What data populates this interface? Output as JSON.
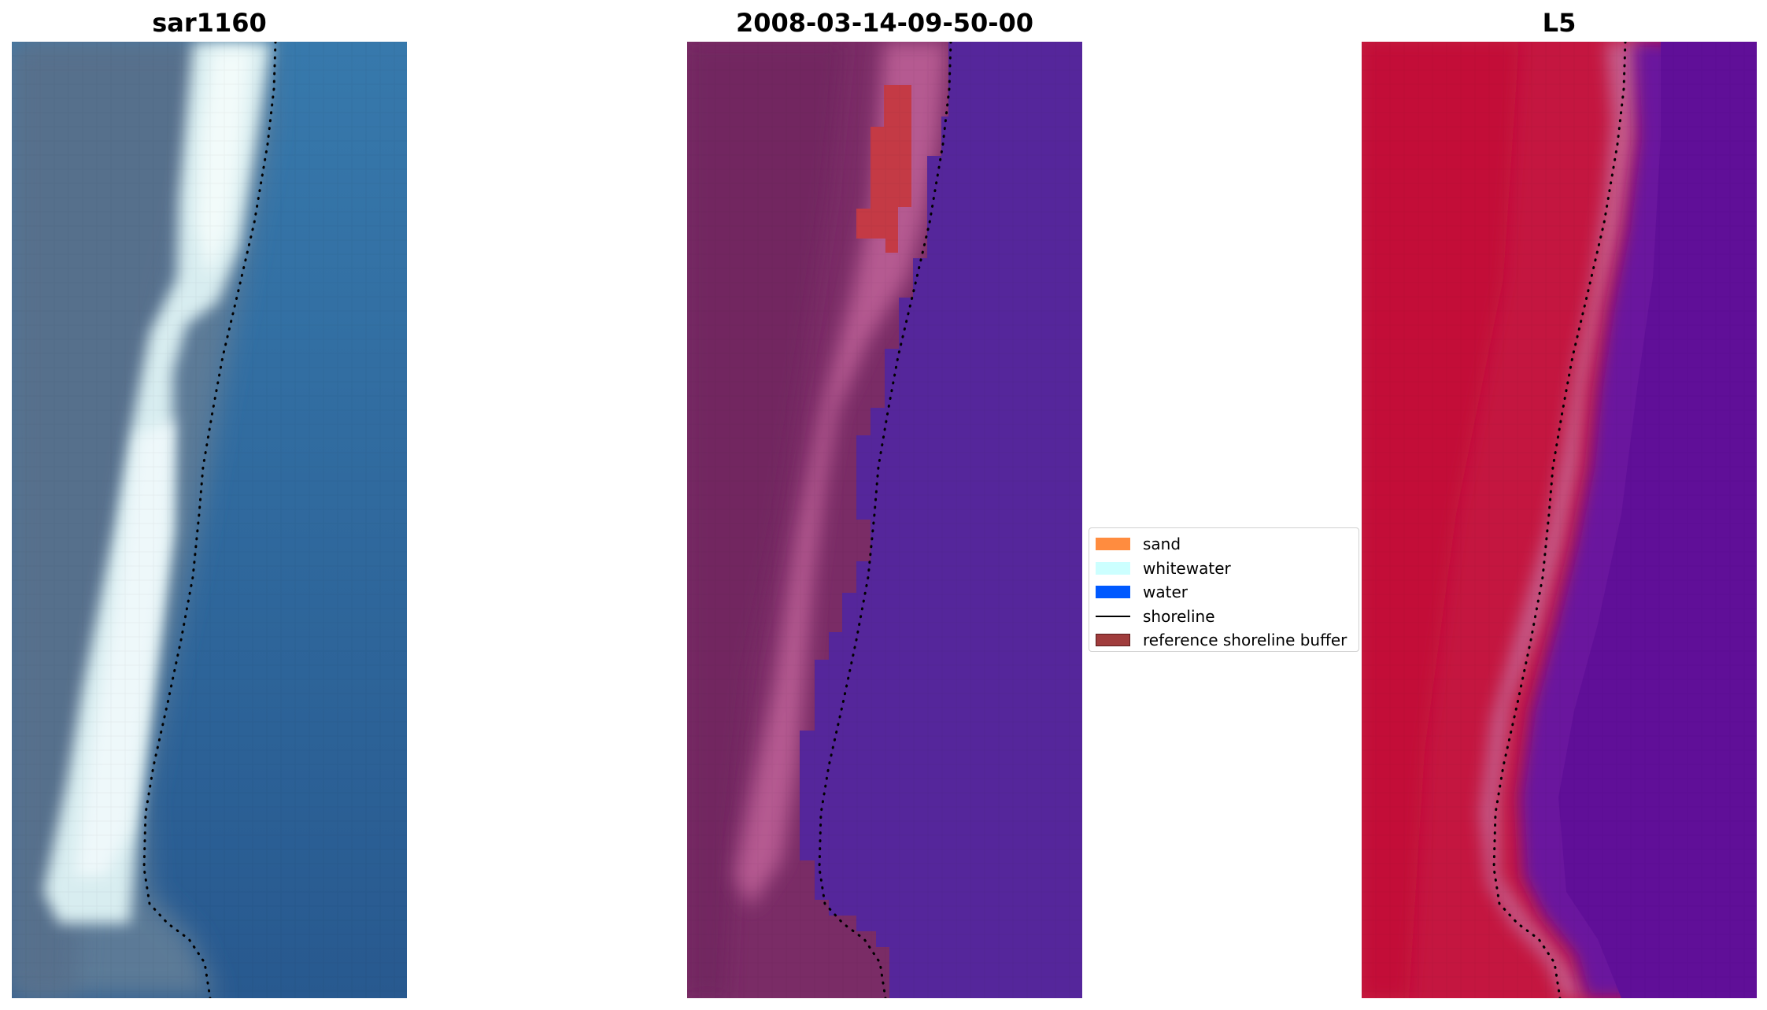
{
  "panels": [
    {
      "id": "rgb",
      "title": "sar1160"
    },
    {
      "id": "classified",
      "title": "2008-03-14-09-50-00"
    },
    {
      "id": "index",
      "title": "L5"
    }
  ],
  "legend": {
    "placement": "center-right of second panel",
    "items": [
      {
        "label": "sand",
        "type": "patch",
        "color": "#ff8c3f"
      },
      {
        "label": "whitewater",
        "type": "patch",
        "color": "#ccffff"
      },
      {
        "label": "water",
        "type": "patch",
        "color": "#0059ff"
      },
      {
        "label": "shoreline",
        "type": "line",
        "color": "#000000"
      },
      {
        "label": "reference shoreline buffer",
        "type": "patch",
        "color": "#a03c3c"
      }
    ]
  },
  "colors": {
    "rgb_land": "#5a7a9a",
    "rgb_surf": "#e6f6f8",
    "rgb_water": "#2d6aa0",
    "classified_land": "#7a2c66",
    "classified_wet_sand": "#b5598f",
    "classified_water": "#55269b",
    "classified_buffer": "#c43a45",
    "index_land": "#c41640",
    "index_water": "#62119a",
    "shoreline": "#000000"
  }
}
